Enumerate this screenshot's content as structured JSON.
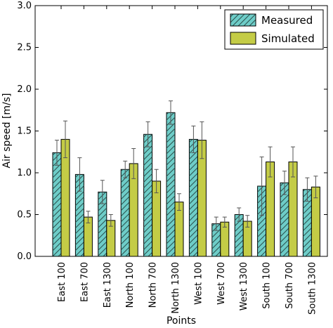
{
  "chart_data": {
    "type": "bar",
    "title": "",
    "xlabel": "Points",
    "ylabel": "Air speed [m/s]",
    "ylim": [
      0,
      3.0
    ],
    "yticks": [
      "0.0",
      "0.5",
      "1.0",
      "1.5",
      "2.0",
      "2.5",
      "3.0"
    ],
    "grid": false,
    "legend_position": "top-right",
    "categories": [
      "East 100",
      "East 700",
      "East 1300",
      "North 100",
      "North 700",
      "North 1300",
      "West 100",
      "West 700",
      "West 1300",
      "South 100",
      "South 700",
      "South 1300"
    ],
    "series": [
      {
        "name": "Measured",
        "color": "#6ecdc8",
        "hatch": true,
        "values": [
          1.24,
          0.98,
          0.77,
          1.04,
          1.46,
          1.72,
          1.4,
          0.39,
          0.5,
          0.84,
          0.88,
          0.8
        ],
        "errors": [
          0.15,
          0.2,
          0.14,
          0.1,
          0.15,
          0.14,
          0.16,
          0.08,
          0.08,
          0.35,
          0.14,
          0.14
        ]
      },
      {
        "name": "Simulated",
        "color": "#c4cc46",
        "hatch": false,
        "values": [
          1.4,
          0.47,
          0.43,
          1.11,
          0.9,
          0.65,
          1.39,
          0.41,
          0.42,
          1.13,
          1.13,
          0.83
        ],
        "errors": [
          0.22,
          0.07,
          0.07,
          0.18,
          0.14,
          0.1,
          0.22,
          0.06,
          0.07,
          0.18,
          0.18,
          0.13
        ]
      }
    ]
  }
}
